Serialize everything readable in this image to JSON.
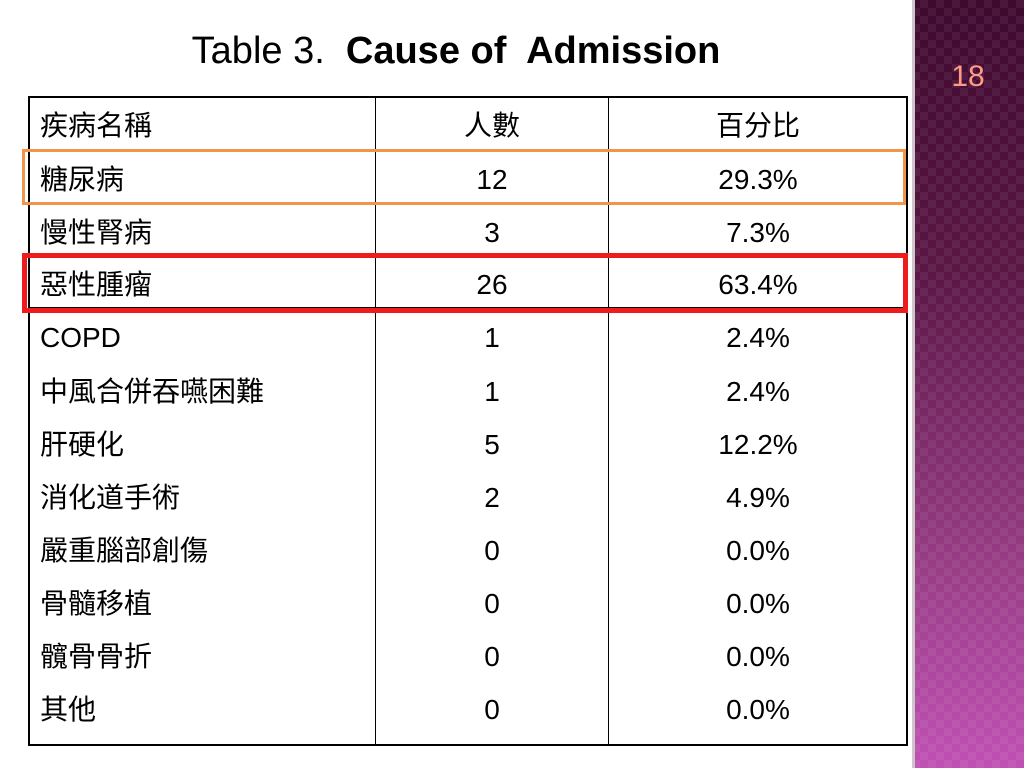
{
  "slide": {
    "number": "18",
    "title_plain": "Table 3.  ",
    "title_bold": "Cause of  Admission"
  },
  "colors": {
    "highlight_orange": "#f0954a",
    "highlight_red": "#ee1c1c",
    "slide_number": "#ff9a86"
  },
  "table": {
    "headers": [
      "疾病名稱",
      "人數",
      "百分比"
    ],
    "rows": [
      [
        "糖尿病",
        "12",
        "29.3%"
      ],
      [
        "慢性腎病",
        "3",
        "7.3%"
      ],
      [
        "惡性腫瘤",
        "26",
        "63.4%"
      ],
      [
        "COPD",
        "1",
        "2.4%"
      ],
      [
        "中風合併吞嚥困難",
        "1",
        "2.4%"
      ],
      [
        "肝硬化",
        "5",
        "12.2%"
      ],
      [
        "消化道手術",
        "2",
        "4.9%"
      ],
      [
        "嚴重腦部創傷",
        "0",
        "0.0%"
      ],
      [
        "骨髓移植",
        "0",
        "0.0%"
      ],
      [
        "髖骨骨折",
        "0",
        "0.0%"
      ],
      [
        "其他",
        "0",
        "0.0%"
      ]
    ]
  }
}
